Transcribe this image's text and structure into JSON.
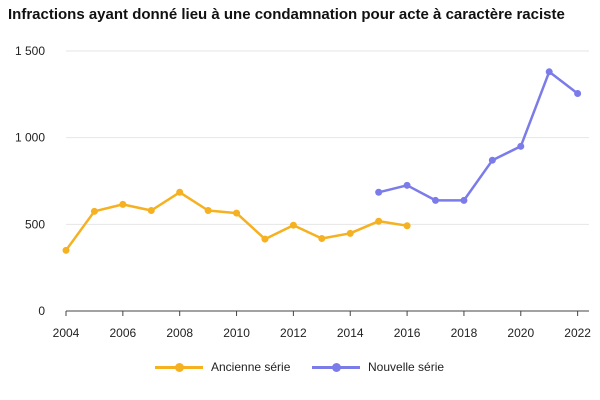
{
  "chart_data": {
    "type": "line",
    "title": "Infractions ayant donné lieu à une condamnation pour acte à caractère raciste",
    "xlabel": "",
    "ylabel": "",
    "x": [
      2004,
      2005,
      2006,
      2007,
      2008,
      2009,
      2010,
      2011,
      2012,
      2013,
      2014,
      2015,
      2016,
      2017,
      2018,
      2019,
      2020,
      2021,
      2022
    ],
    "xlim": [
      2004,
      2022.4
    ],
    "ylim": [
      0,
      1500
    ],
    "x_ticks": [
      "2004",
      "2006",
      "2008",
      "2010",
      "2012",
      "2014",
      "2016",
      "2018",
      "2020",
      "2022"
    ],
    "y_ticks": [
      "0",
      "500",
      "1 000",
      "1 500"
    ],
    "grid": "horizontal",
    "legend_position": "bottom",
    "series": [
      {
        "name": "Ancienne série",
        "color": "#F5B120",
        "points": [
          [
            2004,
            350
          ],
          [
            2005,
            575
          ],
          [
            2006,
            615
          ],
          [
            2007,
            580
          ],
          [
            2008,
            685
          ],
          [
            2009,
            580
          ],
          [
            2010,
            565
          ],
          [
            2011,
            415
          ],
          [
            2012,
            495
          ],
          [
            2013,
            418
          ],
          [
            2014,
            448
          ],
          [
            2015,
            518
          ],
          [
            2016,
            492
          ]
        ]
      },
      {
        "name": "Nouvelle série",
        "color": "#7B7BEA",
        "points": [
          [
            2015,
            685
          ],
          [
            2016,
            725
          ],
          [
            2017,
            638
          ],
          [
            2018,
            638
          ],
          [
            2019,
            870
          ],
          [
            2020,
            950
          ],
          [
            2021,
            1380
          ],
          [
            2022,
            1255
          ]
        ]
      }
    ]
  }
}
